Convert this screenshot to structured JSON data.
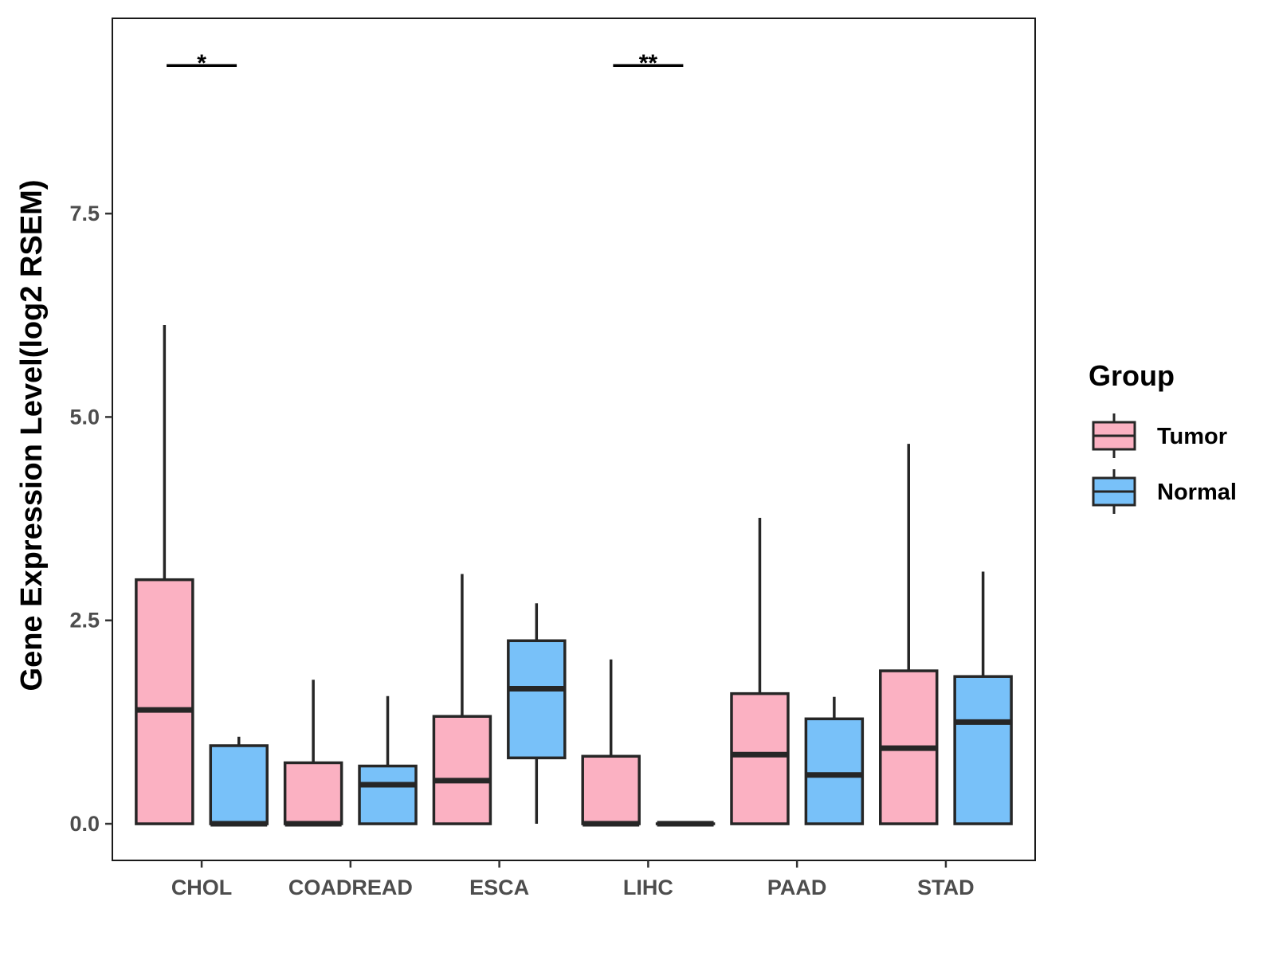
{
  "chart_data": {
    "type": "boxplot",
    "title": "",
    "xlabel": "",
    "ylabel": "Gene Expression Level(log2 RSEM)",
    "ylim": [
      -0.45,
      9.9
    ],
    "yticks": [
      0.0,
      2.5,
      5.0,
      7.5
    ],
    "ytick_labels": [
      "0.0",
      "2.5",
      "5.0",
      "7.5"
    ],
    "categories": [
      "CHOL",
      "COADREAD",
      "ESCA",
      "LIHC",
      "PAAD",
      "STAD"
    ],
    "legend": {
      "title": "Group",
      "position": "right",
      "entries": [
        {
          "name": "Tumor",
          "color": "#FBB1C2"
        },
        {
          "name": "Normal",
          "color": "#78C1F9"
        }
      ]
    },
    "series": [
      {
        "name": "Tumor",
        "color": "#FBB1C2",
        "boxes": [
          {
            "category": "CHOL",
            "min": 0.0,
            "q1": 0.0,
            "median": 1.4,
            "q3": 3.0,
            "max": 6.13
          },
          {
            "category": "COADREAD",
            "min": 0.0,
            "q1": 0.0,
            "median": 0.0,
            "q3": 0.75,
            "max": 1.77
          },
          {
            "category": "ESCA",
            "min": 0.0,
            "q1": 0.0,
            "median": 0.53,
            "q3": 1.32,
            "max": 3.07
          },
          {
            "category": "LIHC",
            "min": 0.0,
            "q1": 0.0,
            "median": 0.0,
            "q3": 0.83,
            "max": 2.02
          },
          {
            "category": "PAAD",
            "min": 0.0,
            "q1": 0.0,
            "median": 0.85,
            "q3": 1.6,
            "max": 3.76
          },
          {
            "category": "STAD",
            "min": 0.0,
            "q1": 0.0,
            "median": 0.93,
            "q3": 1.88,
            "max": 4.67
          }
        ]
      },
      {
        "name": "Normal",
        "color": "#78C1F9",
        "boxes": [
          {
            "category": "CHOL",
            "min": 0.0,
            "q1": 0.0,
            "median": 0.0,
            "q3": 0.96,
            "max": 1.07
          },
          {
            "category": "COADREAD",
            "min": 0.0,
            "q1": 0.0,
            "median": 0.48,
            "q3": 0.71,
            "max": 1.57
          },
          {
            "category": "ESCA",
            "min": 0.0,
            "q1": 0.81,
            "median": 1.66,
            "q3": 2.25,
            "max": 2.71
          },
          {
            "category": "LIHC",
            "min": 0.0,
            "q1": 0.0,
            "median": 0.0,
            "q3": 0.0,
            "max": 0.0
          },
          {
            "category": "PAAD",
            "min": 0.0,
            "q1": 0.0,
            "median": 0.6,
            "q3": 1.29,
            "max": 1.56
          },
          {
            "category": "STAD",
            "min": 0.0,
            "q1": 0.0,
            "median": 1.25,
            "q3": 1.81,
            "max": 3.1
          }
        ]
      }
    ],
    "annotations": [
      {
        "category": "CHOL",
        "text": "*",
        "y": 9.32
      },
      {
        "category": "LIHC",
        "text": "**",
        "y": 9.32
      }
    ]
  }
}
